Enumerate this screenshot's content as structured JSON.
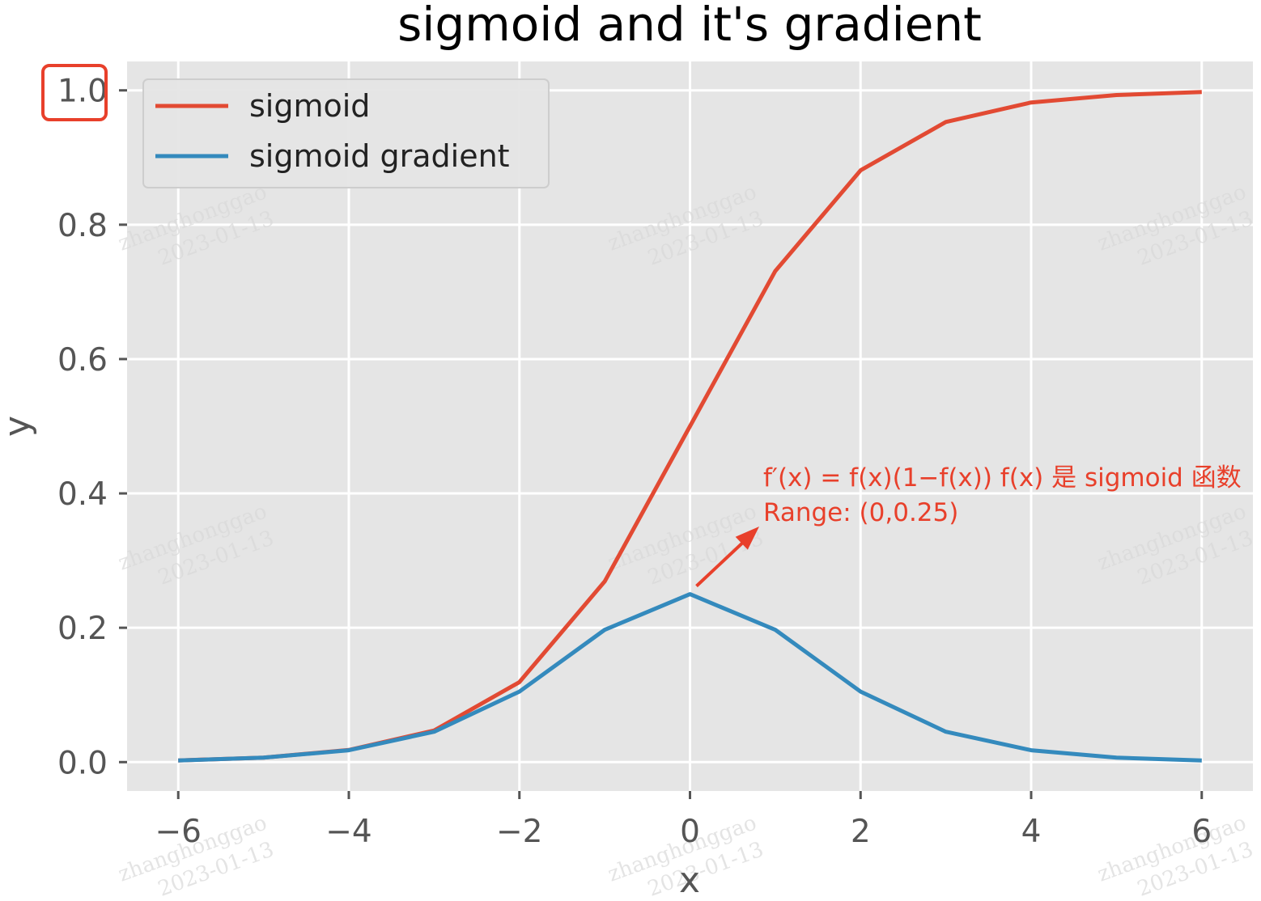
{
  "chart_data": {
    "type": "line",
    "title": "sigmoid and it's gradient",
    "xlabel": "x",
    "ylabel": "y",
    "xlim": [
      -6.6,
      6.6
    ],
    "ylim": [
      -0.043,
      1.043
    ],
    "xticks": [
      -6,
      -4,
      -2,
      0,
      2,
      4,
      6
    ],
    "xtick_labels": [
      "−6",
      "−4",
      "−2",
      "0",
      "2",
      "4",
      "6"
    ],
    "yticks": [
      0.0,
      0.2,
      0.4,
      0.6,
      0.8,
      1.0
    ],
    "ytick_labels": [
      "0.0",
      "0.2",
      "0.4",
      "0.6",
      "0.8",
      "1.0"
    ],
    "grid": true,
    "legend": "top-left",
    "x": [
      -6,
      -5,
      -4,
      -3,
      -2,
      -1,
      0,
      1,
      2,
      3,
      4,
      5,
      6
    ],
    "series": [
      {
        "name": "sigmoid",
        "color": "#e24a33",
        "values": [
          0.0025,
          0.0067,
          0.018,
          0.047,
          0.119,
          0.269,
          0.5,
          0.731,
          0.881,
          0.953,
          0.982,
          0.993,
          0.9975
        ]
      },
      {
        "name": "sigmoid gradient",
        "color": "#348abd",
        "values": [
          0.0025,
          0.0066,
          0.0177,
          0.0452,
          0.105,
          0.197,
          0.25,
          0.197,
          0.105,
          0.0452,
          0.0177,
          0.0066,
          0.0025
        ]
      }
    ],
    "annotation": {
      "line1": "f′(x) = f(x)(1−f(x)) f(x) 是 sigmoid 函数",
      "line2": "Range: (0,0.25)",
      "color": "#e8402b",
      "points_to": {
        "x": 0,
        "y": 0.25
      }
    },
    "highlight": {
      "target_tick": "1.0",
      "color": "#e8402b"
    },
    "watermark": {
      "line1": "zhanghonggao",
      "line2": "2023-01-13"
    }
  }
}
